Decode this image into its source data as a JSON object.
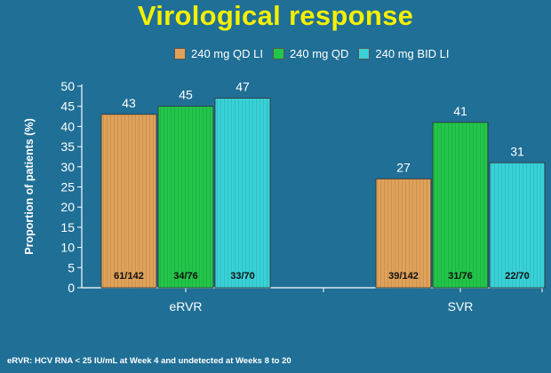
{
  "title": "Virological response",
  "footnote": "eRVR: HCV RNA < 25 IU/mL at Week 4 and undetected at Weeks 8 to 20",
  "colors": {
    "background": "#1f6f96",
    "title": "#f5f000",
    "series": [
      "#e0a25a",
      "#22c64a",
      "#38d2d8"
    ]
  },
  "chart_data": {
    "type": "bar",
    "ylabel": "Proportion of patients (%)",
    "xlabel": "",
    "ylim": [
      0,
      50
    ],
    "yticks": [
      0,
      5,
      10,
      15,
      20,
      25,
      30,
      35,
      40,
      45,
      50
    ],
    "categories": [
      "eRVR",
      "SVR"
    ],
    "legend_position": "top-right",
    "series": [
      {
        "name": "240 mg QD LI",
        "values": [
          43,
          27
        ],
        "counts": [
          "61/142",
          "39/142"
        ]
      },
      {
        "name": "240 mg QD",
        "values": [
          45,
          41
        ],
        "counts": [
          "34/76",
          "31/76"
        ]
      },
      {
        "name": "240 mg BID LI",
        "values": [
          47,
          31
        ],
        "counts": [
          "33/70",
          "22/70"
        ]
      }
    ]
  }
}
